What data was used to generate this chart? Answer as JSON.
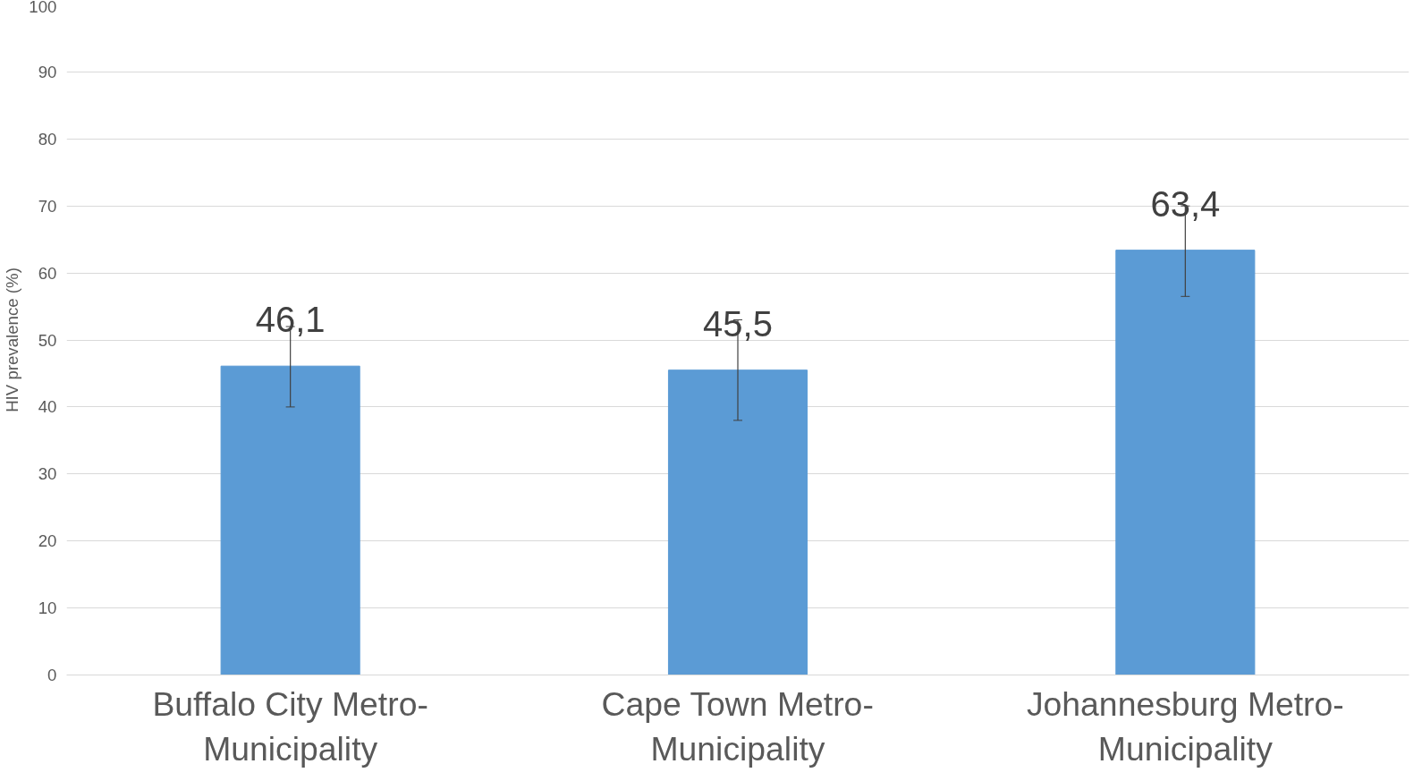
{
  "chart_data": {
    "type": "bar",
    "ylabel": "HIV prevalence (%)",
    "categories": [
      "Buffalo City Metro-Municipality",
      "Cape Town Metro-Municipality",
      "Johannesburg Metro-Municipality"
    ],
    "values": [
      46.1,
      45.5,
      63.4
    ],
    "value_labels": [
      "46,1",
      "45,5",
      "63,4"
    ],
    "errors": [
      [
        40,
        52
      ],
      [
        38,
        53
      ],
      [
        56.5,
        70
      ]
    ],
    "color": "#5b9bd5",
    "ylim": [
      0,
      100
    ],
    "yticks": [
      0,
      10,
      20,
      30,
      40,
      50,
      60,
      70,
      80,
      90,
      100
    ],
    "grid": "y"
  }
}
